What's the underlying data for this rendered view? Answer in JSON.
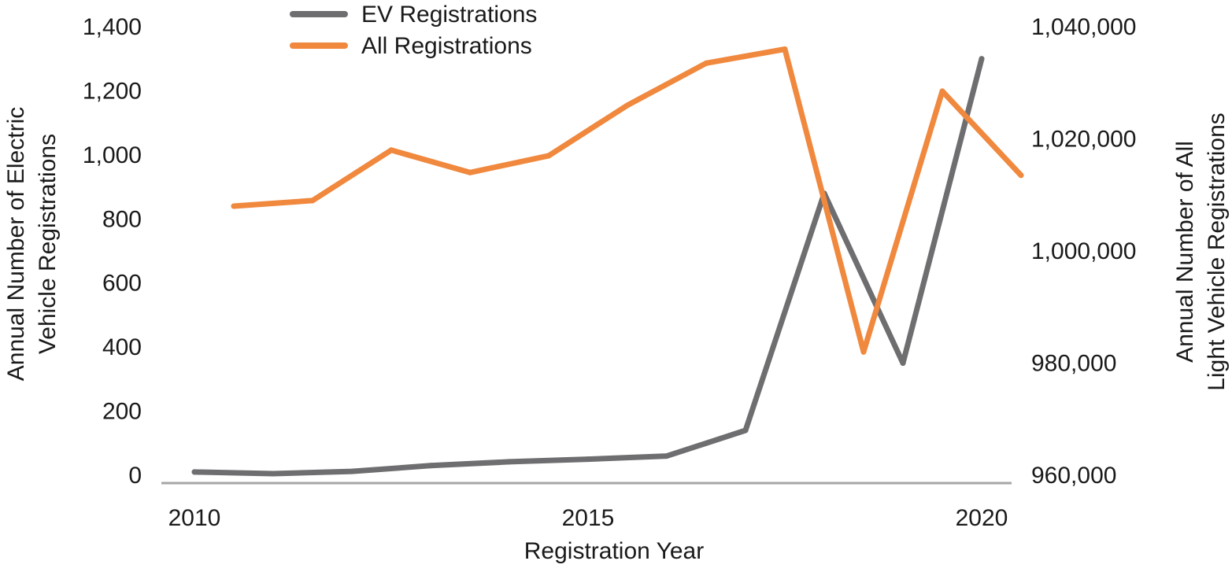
{
  "chart_data": {
    "type": "line",
    "title": "",
    "xlabel": "Registration Year",
    "ylabel_left": "Annual Number of Electric Vehicle Registrations",
    "ylabel_left_lines": [
      "Annual Number of Electric",
      "Vehicle Registrations"
    ],
    "ylabel_right": "Annual Number of All Light Vehicle Registrations",
    "ylabel_right_lines": [
      "Annual Number of All",
      "Light Vehicle Registrations"
    ],
    "x_ticks": [
      "2010",
      "2015",
      "2020"
    ],
    "xlim": [
      2010,
      2020.5
    ],
    "y_left_ticks": [
      "0",
      "200",
      "400",
      "600",
      "800",
      "1,000",
      "1,200",
      "1,400"
    ],
    "y_left_lim": [
      0,
      1400
    ],
    "y_right_ticks": [
      "960,000",
      "980,000",
      "1,000,000",
      "1,020,000",
      "1,040,000"
    ],
    "y_right_lim": [
      960000,
      1040000
    ],
    "legend_position": "top-center",
    "grid": false,
    "series": [
      {
        "name": "EV Registrations",
        "axis": "left",
        "color": "#6e6e70",
        "points": [
          {
            "x": 2010,
            "y": 10
          },
          {
            "x": 2011,
            "y": 5
          },
          {
            "x": 2012,
            "y": 12
          },
          {
            "x": 2013,
            "y": 30
          },
          {
            "x": 2014,
            "y": 42
          },
          {
            "x": 2015,
            "y": 50
          },
          {
            "x": 2016,
            "y": 60
          },
          {
            "x": 2017,
            "y": 140
          },
          {
            "x": 2018,
            "y": 880
          },
          {
            "x": 2019,
            "y": 350
          },
          {
            "x": 2020,
            "y": 1300
          }
        ]
      },
      {
        "name": "All Registrations",
        "axis": "right",
        "color": "#f0883e",
        "points": [
          {
            "x": 2010.5,
            "y": 1008000
          },
          {
            "x": 2011.5,
            "y": 1009000
          },
          {
            "x": 2012.5,
            "y": 1018000
          },
          {
            "x": 2013.5,
            "y": 1014000
          },
          {
            "x": 2014.5,
            "y": 1017000
          },
          {
            "x": 2015.5,
            "y": 1026000
          },
          {
            "x": 2016.5,
            "y": 1033500
          },
          {
            "x": 2017.5,
            "y": 1036000
          },
          {
            "x": 2018.5,
            "y": 982000
          },
          {
            "x": 2019.5,
            "y": 1028500
          },
          {
            "x": 2020.5,
            "y": 1013500
          }
        ]
      }
    ]
  }
}
